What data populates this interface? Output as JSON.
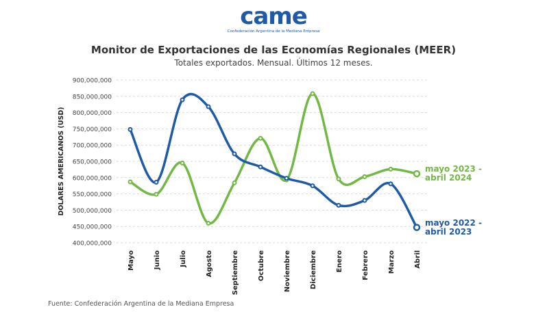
{
  "header": {
    "logo_text": "came",
    "logo_subtitle": "Confederación Argentina de la Mediana Empresa"
  },
  "footer": {
    "source": "Fuente: Confederación Argentina de la Mediana Empresa"
  },
  "colors": {
    "series_2023_2024": "#72b844",
    "series_2022_2023": "#1f5aa6",
    "grid": "#d9d9d9"
  },
  "chart_data": {
    "type": "line",
    "title": "Monitor de Exportaciones de las Economías Regionales (MEER)",
    "subtitle": "Totales exportados. Mensual. Últimos 12 meses.",
    "xlabel": "",
    "ylabel": "DOLARES AMERICANOS (USD)",
    "ylim": [
      400000000,
      900000000
    ],
    "yticks": [
      400000000,
      450000000,
      500000000,
      550000000,
      600000000,
      650000000,
      700000000,
      750000000,
      800000000,
      850000000,
      900000000
    ],
    "ytick_labels": [
      "400,000,000",
      "450,000,000",
      "500,000,000",
      "550,000,000",
      "600,000,000",
      "650,000,000",
      "700,000,000",
      "750,000,000",
      "800,000,000",
      "850,000,000",
      "900,000,000"
    ],
    "categories": [
      "Mayo",
      "Junio",
      "Julio",
      "Agosto",
      "Septiembre",
      "Octubre",
      "Noviembre",
      "Diciembre",
      "Enero",
      "Febrero",
      "Marzo",
      "Abril"
    ],
    "grid": true,
    "series": [
      {
        "name": "mayo 2023 - abril 2024",
        "label_lines": [
          "mayo 2023 -",
          "abril 2024"
        ],
        "color": "#72b844",
        "values": [
          587000000,
          549000000,
          645000000,
          460000000,
          584000000,
          721000000,
          593000000,
          858000000,
          596000000,
          603000000,
          626000000,
          612000000
        ]
      },
      {
        "name": "mayo 2022 - abril 2023",
        "label_lines": [
          "mayo 2022 -",
          "abril 2023"
        ],
        "color": "#1f5aa6",
        "values": [
          748000000,
          586000000,
          839000000,
          818000000,
          673000000,
          633000000,
          598000000,
          575000000,
          515000000,
          530000000,
          581000000,
          447000000
        ]
      }
    ]
  }
}
